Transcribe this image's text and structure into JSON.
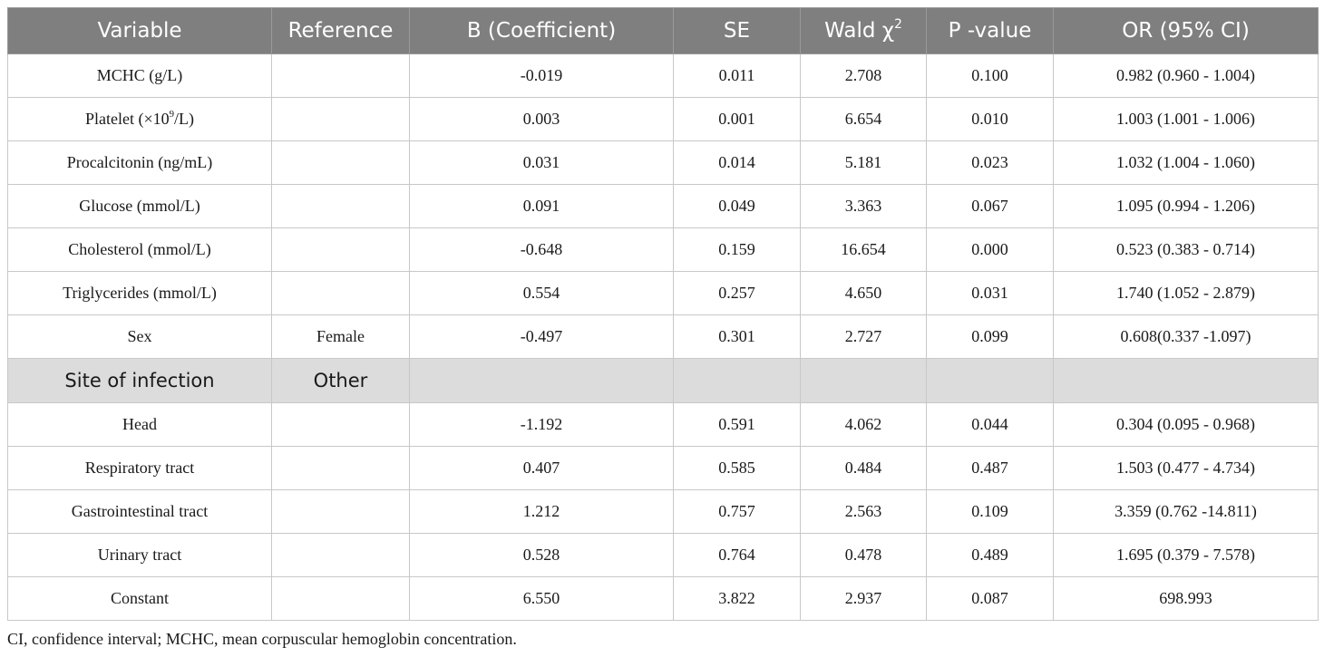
{
  "table": {
    "headers": {
      "variable": "Variable",
      "reference": "Reference",
      "b": "B (Coefficient)",
      "se": "SE",
      "wald_base": "Wald χ",
      "wald_sup": "2",
      "p": "P -value",
      "or": "OR (95% CI)"
    },
    "platelet_label": {
      "base": "Platelet (×10",
      "sup": "9",
      "tail": "/L)"
    },
    "rows": [
      {
        "variable": "MCHC (g/L)",
        "reference": "",
        "b": "-0.019",
        "se": "0.011",
        "wald": "2.708",
        "p": "0.100",
        "or": "0.982 (0.960 - 1.004)"
      },
      {
        "variable": "Platelet (×109/L)",
        "reference": "",
        "b": "0.003",
        "se": "0.001",
        "wald": "6.654",
        "p": "0.010",
        "or": "1.003 (1.001 - 1.006)"
      },
      {
        "variable": "Procalcitonin (ng/mL)",
        "reference": "",
        "b": "0.031",
        "se": "0.014",
        "wald": "5.181",
        "p": "0.023",
        "or": "1.032 (1.004 - 1.060)"
      },
      {
        "variable": "Glucose (mmol/L)",
        "reference": "",
        "b": "0.091",
        "se": "0.049",
        "wald": "3.363",
        "p": "0.067",
        "or": "1.095 (0.994 - 1.206)"
      },
      {
        "variable": "Cholesterol (mmol/L)",
        "reference": "",
        "b": "-0.648",
        "se": "0.159",
        "wald": "16.654",
        "p": "0.000",
        "or": "0.523 (0.383 - 0.714)"
      },
      {
        "variable": "Triglycerides (mmol/L)",
        "reference": "",
        "b": "0.554",
        "se": "0.257",
        "wald": "4.650",
        "p": "0.031",
        "or": "1.740 (1.052 - 2.879)"
      },
      {
        "variable": "Sex",
        "reference": "Female",
        "b": "-0.497",
        "se": "0.301",
        "wald": "2.727",
        "p": "0.099",
        "or": "0.608(0.337 -1.097)"
      },
      {
        "variable": "Site of infection",
        "reference": "Other",
        "b": "",
        "se": "",
        "wald": "",
        "p": "",
        "or": ""
      },
      {
        "variable": "Head",
        "reference": "",
        "b": "-1.192",
        "se": "0.591",
        "wald": "4.062",
        "p": "0.044",
        "or": "0.304 (0.095 - 0.968)"
      },
      {
        "variable": "Respiratory tract",
        "reference": "",
        "b": "0.407",
        "se": "0.585",
        "wald": "0.484",
        "p": "0.487",
        "or": "1.503 (0.477 - 4.734)"
      },
      {
        "variable": "Gastrointestinal tract",
        "reference": "",
        "b": "1.212",
        "se": "0.757",
        "wald": "2.563",
        "p": "0.109",
        "or": "3.359 (0.762 -14.811)"
      },
      {
        "variable": "Urinary tract",
        "reference": "",
        "b": "0.528",
        "se": "0.764",
        "wald": "0.478",
        "p": "0.489",
        "or": "1.695 (0.379 - 7.578)"
      },
      {
        "variable": "Constant",
        "reference": "",
        "b": "6.550",
        "se": "3.822",
        "wald": "2.937",
        "p": "0.087",
        "or": "698.993"
      }
    ]
  },
  "footnote": "CI, confidence interval; MCHC, mean corpuscular hemoglobin concentration."
}
